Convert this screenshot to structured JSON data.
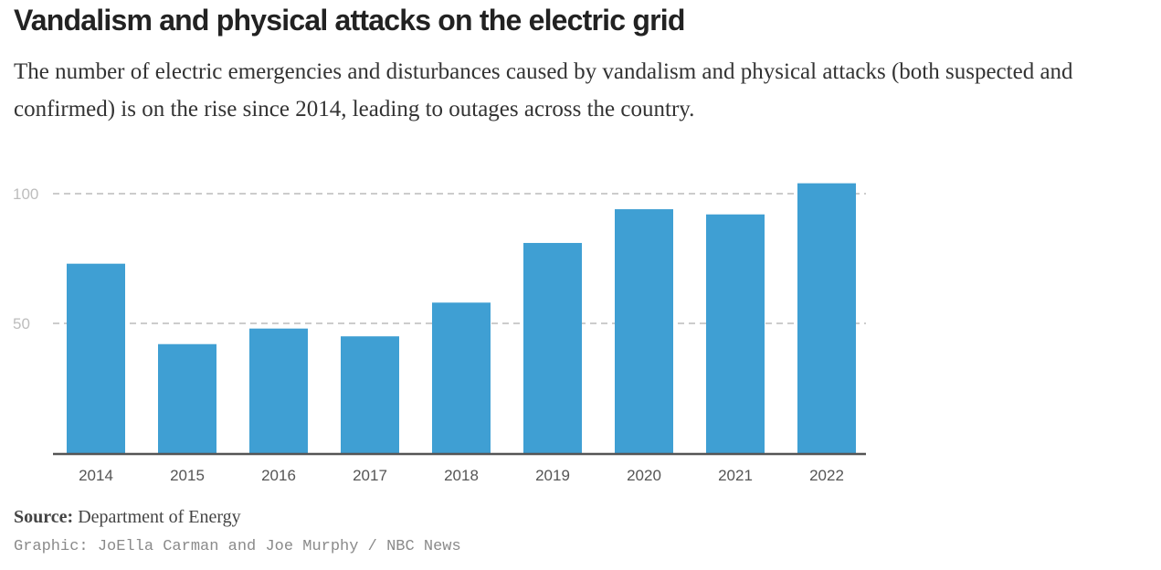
{
  "title": "Vandalism and physical attacks on the electric grid",
  "subtitle": "The number of electric emergencies and disturbances caused by vandalism and physical attacks (both suspected and confirmed) is on the rise since 2014, leading to outages across the country.",
  "source": {
    "label": "Source:",
    "text": "Department of Energy"
  },
  "credit": "Graphic: JoElla Carman and Joe Murphy / NBC News",
  "colors": {
    "bar": "#3f9fd3",
    "gridline": "#cccccc",
    "axis": "#555555"
  },
  "chart_data": {
    "type": "bar",
    "title": "Vandalism and physical attacks on the electric grid",
    "xlabel": "",
    "ylabel": "",
    "categories": [
      "2014",
      "2015",
      "2016",
      "2017",
      "2018",
      "2019",
      "2020",
      "2021",
      "2022"
    ],
    "values": [
      73,
      42,
      48,
      45,
      58,
      81,
      94,
      92,
      104
    ],
    "yticks": [
      50,
      100
    ],
    "ylim": [
      0,
      104
    ],
    "grid": true,
    "legend": "none"
  }
}
